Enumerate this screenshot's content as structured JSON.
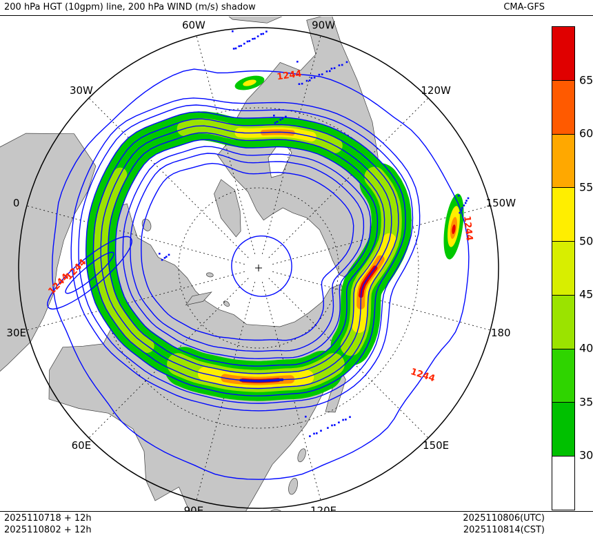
{
  "header": {
    "title": "200 hPa HGT (10gpm) line, 200 hPa WIND (m/s) shadow",
    "model": "CMA-GFS"
  },
  "footer": {
    "left_lines": [
      "2025110718 + 12h",
      "2025110802 + 12h"
    ],
    "right_lines": [
      "2025110806(UTC)",
      "2025110814(CST)"
    ]
  },
  "map": {
    "contour_label": "1244",
    "meridian_labels": [
      {
        "label": "60W",
        "angle": -15
      },
      {
        "label": "90W",
        "angle": 15
      },
      {
        "label": "120W",
        "angle": 45
      },
      {
        "label": "150W",
        "angle": 75
      },
      {
        "label": "180",
        "angle": 105
      },
      {
        "label": "150E",
        "angle": 135
      },
      {
        "label": "120E",
        "angle": 165
      },
      {
        "label": "90E",
        "angle": 195
      },
      {
        "label": "60E",
        "angle": 225
      },
      {
        "label": "30E",
        "angle": 255
      },
      {
        "label": "0",
        "angle": 285
      },
      {
        "label": "30W",
        "angle": 315
      }
    ]
  },
  "colorbar": {
    "tick_labels": [
      "65",
      "60",
      "55",
      "50",
      "45",
      "40",
      "35",
      "30"
    ],
    "segment_colors_top_to_bottom": [
      "#e00000",
      "#ff5a00",
      "#ffa800",
      "#ffee00",
      "#d8ee00",
      "#9be300",
      "#2fd400",
      "#00c000",
      "#ffffff"
    ]
  },
  "chart_data": {
    "type": "heatmap",
    "title": "200 hPa HGT (10gpm) line, 200 hPa WIND (m/s) shadow",
    "model": "CMA-GFS",
    "projection": "north-polar-stereographic",
    "shaded_variable": "200 hPa wind speed (m/s)",
    "shade_levels": [
      30,
      35,
      40,
      45,
      50,
      55,
      60,
      65
    ],
    "shade_colors_low_to_high": [
      "#00c000",
      "#2fd400",
      "#9be300",
      "#d8ee00",
      "#ffee00",
      "#ffa800",
      "#ff5a00",
      "#e00000"
    ],
    "contour_variable": "200 hPa geopotential height (10 gpm)",
    "labeled_contour_value": 1244,
    "meridian_tick_labels": [
      "60W",
      "90W",
      "120W",
      "150W",
      "180",
      "150E",
      "120E",
      "90E",
      "60E",
      "30E",
      "0",
      "30W"
    ],
    "init_times": [
      "2025110718 + 12h",
      "2025110802 + 12h"
    ],
    "valid_times": [
      "2025110806(UTC)",
      "2025110814(CST)"
    ],
    "legend_position": "right"
  }
}
